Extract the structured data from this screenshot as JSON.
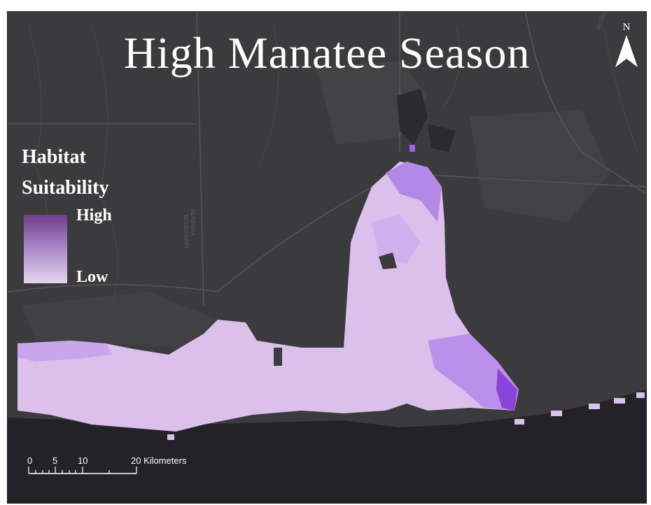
{
  "map": {
    "title": "High Manatee Season",
    "north_label": "N",
    "legend": {
      "title_line1": "Habitat",
      "title_line2": "Suitability",
      "high_label": "High",
      "low_label": "Low",
      "ramp_colors": [
        "#6e3f8d",
        "#9f79be",
        "#e4d6ee"
      ]
    },
    "scalebar": {
      "tick_labels": [
        "0",
        "5",
        "10",
        "20 Kilometers"
      ]
    },
    "basemap_labels": {
      "alabama": "ALABAMA",
      "mississippi": "MISSISSIPPI",
      "florida": "FLORIDA"
    },
    "colors": {
      "basemap": "#3b3b3d",
      "water": "#232226",
      "habitat_low": "#dcc0ec",
      "habitat_high": "#8a44d8"
    }
  }
}
